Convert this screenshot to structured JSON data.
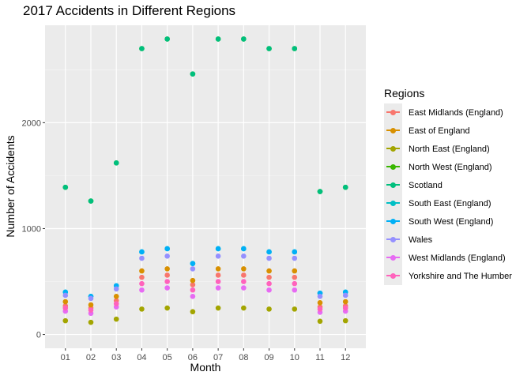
{
  "chart_data": {
    "type": "scatter",
    "title": "2017 Accidents in Different Regions",
    "xlabel": "Month",
    "ylabel": "Number of Accidents",
    "categories": [
      "01",
      "02",
      "03",
      "04",
      "05",
      "06",
      "07",
      "08",
      "09",
      "10",
      "11",
      "12"
    ],
    "ylim": [
      0,
      2900
    ],
    "yticks": [
      0,
      1000,
      2000
    ],
    "grid": true,
    "legend_title": "Regions",
    "legend_position": "right",
    "series": [
      {
        "name": "East Midlands (England)",
        "color": "#F8766D",
        "values": [
          270,
          250,
          320,
          540,
          560,
          470,
          560,
          560,
          540,
          540,
          260,
          270
        ]
      },
      {
        "name": "East of England",
        "color": "#D89000",
        "values": [
          310,
          280,
          360,
          600,
          620,
          510,
          620,
          620,
          600,
          600,
          300,
          310
        ]
      },
      {
        "name": "North East (England)",
        "color": "#A3A500",
        "values": [
          130,
          115,
          145,
          240,
          250,
          215,
          250,
          250,
          240,
          240,
          125,
          130
        ]
      },
      {
        "name": "North West (England)",
        "color": "#39B600",
        "values": [
          1390,
          1260,
          1620,
          2700,
          2790,
          2460,
          2790,
          2790,
          2700,
          2700,
          1350,
          1390
        ]
      },
      {
        "name": "Scotland",
        "color": "#00BF7D",
        "values": [
          1390,
          1260,
          1620,
          2700,
          2790,
          2460,
          2790,
          2790,
          2700,
          2700,
          1350,
          1390
        ]
      },
      {
        "name": "South East (England)",
        "color": "#00BFC4",
        "values": [
          400,
          360,
          460,
          780,
          810,
          670,
          810,
          810,
          780,
          780,
          390,
          400
        ]
      },
      {
        "name": "South West (England)",
        "color": "#00B0F6",
        "values": [
          400,
          360,
          460,
          780,
          810,
          670,
          810,
          810,
          780,
          780,
          390,
          400
        ]
      },
      {
        "name": "Wales",
        "color": "#9590FF",
        "values": [
          370,
          340,
          430,
          720,
          740,
          620,
          740,
          740,
          720,
          720,
          360,
          370
        ]
      },
      {
        "name": "West Midlands (England)",
        "color": "#E76BF3",
        "values": [
          220,
          200,
          260,
          420,
          440,
          360,
          440,
          440,
          420,
          420,
          210,
          220
        ]
      },
      {
        "name": "Yorkshire and The Humber",
        "color": "#FF62BC",
        "values": [
          250,
          230,
          290,
          480,
          500,
          420,
          500,
          500,
          480,
          480,
          240,
          250
        ]
      }
    ]
  }
}
